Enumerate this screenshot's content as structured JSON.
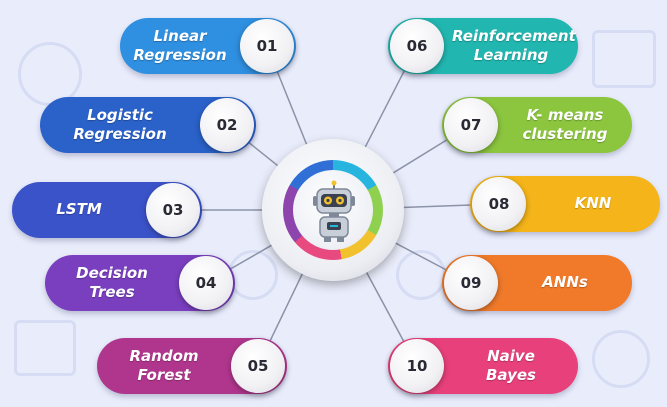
{
  "diagram": {
    "hub": {
      "icon": "robot-icon"
    },
    "items": [
      {
        "number": "01",
        "label": "Linear Regression",
        "color": "#2f8fe0"
      },
      {
        "number": "02",
        "label": "Logistic Regression",
        "color": "#2a62c9"
      },
      {
        "number": "03",
        "label": "LSTM",
        "color": "#3b53c9"
      },
      {
        "number": "04",
        "label": "Decision Trees",
        "color": "#7a3fbf"
      },
      {
        "number": "05",
        "label": "Random Forest",
        "color": "#b0368d"
      },
      {
        "number": "06",
        "label": "Reinforcement Learning",
        "color": "#22b6b0"
      },
      {
        "number": "07",
        "label": "K- means clustering",
        "color": "#8cc63f"
      },
      {
        "number": "08",
        "label": "KNN",
        "color": "#f4b41a"
      },
      {
        "number": "09",
        "label": "ANNs",
        "color": "#f07a2a"
      },
      {
        "number": "10",
        "label": "Naive Bayes",
        "color": "#e8407a"
      }
    ]
  }
}
